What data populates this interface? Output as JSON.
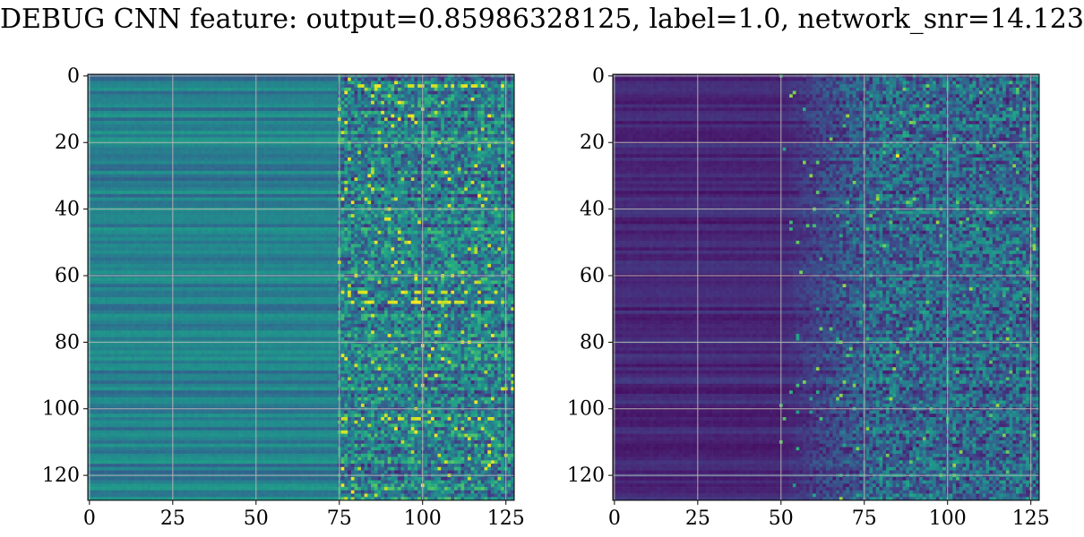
{
  "title": "DEBUG CNN feature: output=0.85986328125, label=1.0, network_snr=14.123",
  "chart_data": [
    {
      "type": "heatmap",
      "colormap": "viridis",
      "rows": 128,
      "cols": 128,
      "xlim": [
        0,
        127
      ],
      "ylim": [
        127,
        0
      ],
      "xticks": [
        0,
        25,
        50,
        75,
        100,
        125
      ],
      "yticks": [
        0,
        20,
        40,
        60,
        80,
        100,
        120
      ],
      "grid": true,
      "description_of_values": "left panel: mid-range (green/teal) values for columns 0-75, noisy speckled values for columns 75-127 with bright spots near rows 3, 65, 68, 103"
    },
    {
      "type": "heatmap",
      "colormap": "viridis",
      "rows": 128,
      "cols": 128,
      "xlim": [
        0,
        127
      ],
      "ylim": [
        127,
        0
      ],
      "xticks": [
        0,
        25,
        50,
        75,
        100,
        125
      ],
      "yticks": [
        0,
        20,
        40,
        60,
        80,
        100,
        120
      ],
      "grid": true,
      "description_of_values": "right panel: low (dark purple) values for columns 0-50, increasingly noisy higher values for columns 50-127 with a bright yellow spot near row 24, column 85"
    }
  ]
}
